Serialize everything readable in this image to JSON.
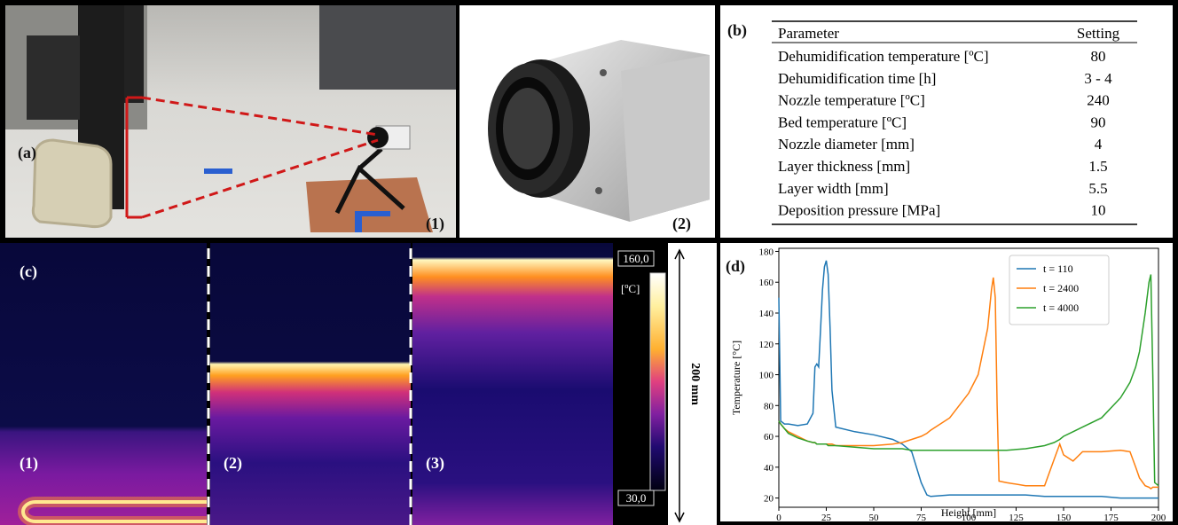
{
  "panel_a": {
    "label": "(a)",
    "sub_label": "(1)"
  },
  "panel_a2": {
    "label": "(2)"
  },
  "panel_b": {
    "label": "(b)",
    "table": {
      "header": [
        "Parameter",
        "Setting"
      ],
      "rows": [
        [
          "Dehumidification temperature [ºC]",
          "80"
        ],
        [
          "Dehumidification time [h]",
          "3 - 4"
        ],
        [
          "Nozzle temperature [ºC]",
          "240"
        ],
        [
          "Bed temperature [ºC]",
          "90"
        ],
        [
          "Nozzle diameter [mm]",
          "4"
        ],
        [
          "Layer thickness [mm]",
          "1.5"
        ],
        [
          "Layer width [mm]",
          "5.5"
        ],
        [
          "Deposition pressure [MPa]",
          "10"
        ]
      ]
    }
  },
  "panel_c": {
    "label": "(c)",
    "stage_labels": [
      "(1)",
      "(2)",
      "(3)"
    ],
    "colorbar_max": "160,0",
    "colorbar_unit": "[ºC]",
    "colorbar_min": "30,0",
    "scale_label": "200 mm"
  },
  "chart_data": {
    "type": "line",
    "panel_label": "(d)",
    "x_label": "Height [mm]",
    "y_label": "Temperature [°C]",
    "x": [
      0,
      1,
      3,
      5,
      10,
      15,
      18,
      19,
      20,
      21,
      22,
      23,
      24,
      25,
      26,
      27,
      28,
      30,
      40,
      50,
      60,
      65,
      70,
      75,
      78,
      80,
      90,
      100,
      105,
      110,
      112,
      113,
      114,
      115,
      116,
      120,
      130,
      140,
      145,
      148,
      150,
      155,
      160,
      170,
      180,
      185,
      188,
      190,
      193,
      195,
      196,
      197,
      198,
      200
    ],
    "series": [
      {
        "name": "t = 110",
        "color": "#1f77b4",
        "values": [
          150,
          70,
          68,
          68,
          67,
          68,
          75,
          105,
          107,
          105,
          130,
          155,
          170,
          174,
          165,
          130,
          90,
          66,
          63,
          61,
          58,
          55,
          50,
          30,
          22,
          21,
          22,
          22,
          22,
          22,
          22,
          22,
          22,
          22,
          22,
          22,
          22,
          21,
          21,
          21,
          21,
          21,
          21,
          21,
          20,
          20,
          20,
          20,
          20,
          20,
          20,
          20,
          20,
          20
        ]
      },
      {
        "name": "t = 2400",
        "color": "#ff7f0e",
        "values": [
          70,
          68,
          65,
          63,
          60,
          57,
          56,
          56,
          55,
          55,
          55,
          55,
          55,
          55,
          55,
          55,
          55,
          54,
          54,
          54,
          55,
          56,
          58,
          60,
          62,
          64,
          72,
          88,
          100,
          130,
          155,
          163,
          150,
          80,
          31,
          30,
          28,
          28,
          45,
          55,
          48,
          44,
          50,
          50,
          51,
          50,
          40,
          33,
          28,
          27,
          26,
          27,
          27,
          27
        ]
      },
      {
        "name": "t = 4000",
        "color": "#2ca02c",
        "values": [
          70,
          68,
          65,
          62,
          59,
          57,
          56,
          56,
          55,
          55,
          55,
          55,
          55,
          55,
          54,
          54,
          54,
          54,
          53,
          52,
          52,
          52,
          51,
          51,
          51,
          51,
          51,
          51,
          51,
          51,
          51,
          51,
          51,
          51,
          51,
          51,
          52,
          54,
          56,
          58,
          60,
          63,
          66,
          72,
          85,
          95,
          105,
          115,
          140,
          160,
          165,
          100,
          30,
          28
        ]
      }
    ],
    "xlim": [
      0,
      200
    ],
    "ylim": [
      14,
      182
    ],
    "xticks": [
      0,
      25,
      50,
      75,
      100,
      125,
      150,
      175,
      200
    ],
    "yticks": [
      20,
      40,
      60,
      80,
      100,
      120,
      140,
      160,
      180
    ],
    "legend": "upper-right"
  }
}
